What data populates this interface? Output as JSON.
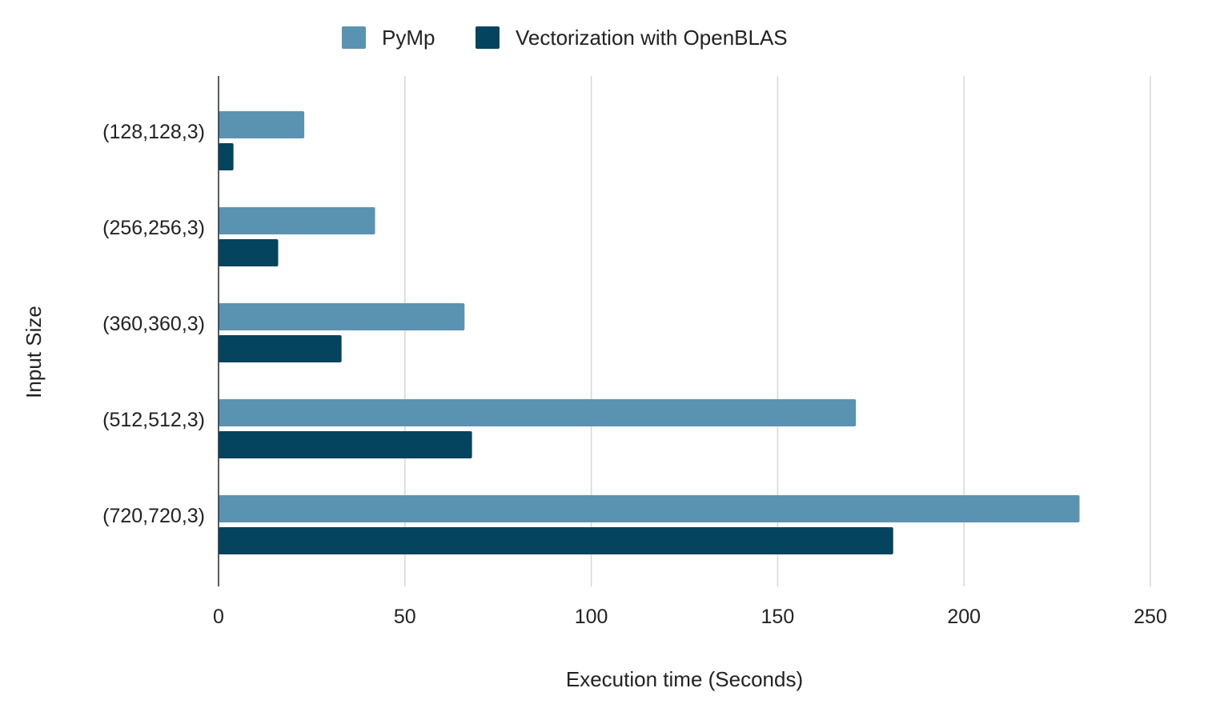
{
  "chart_data": {
    "type": "bar",
    "orientation": "horizontal",
    "title": "",
    "xlabel": "Execution time (Seconds)",
    "ylabel": "Input Size",
    "categories": [
      "(128,128,3)",
      "(256,256,3)",
      "(360,360,3)",
      "(512,512,3)",
      "(720,720,3)"
    ],
    "series": [
      {
        "name": "PyMp",
        "color": "#5a93b2",
        "values": [
          23,
          42,
          66,
          171,
          231
        ]
      },
      {
        "name": "Vectorization with OpenBLAS",
        "color": "#04445f",
        "values": [
          4,
          16,
          33,
          68,
          181
        ]
      }
    ],
    "xlim": [
      0,
      250
    ],
    "xticks": [
      0,
      50,
      100,
      150,
      200,
      250
    ],
    "xtick_labels": [
      "0",
      "50",
      "100",
      "150",
      "200",
      "250"
    ],
    "grid": "vertical",
    "legend_position": "top"
  }
}
